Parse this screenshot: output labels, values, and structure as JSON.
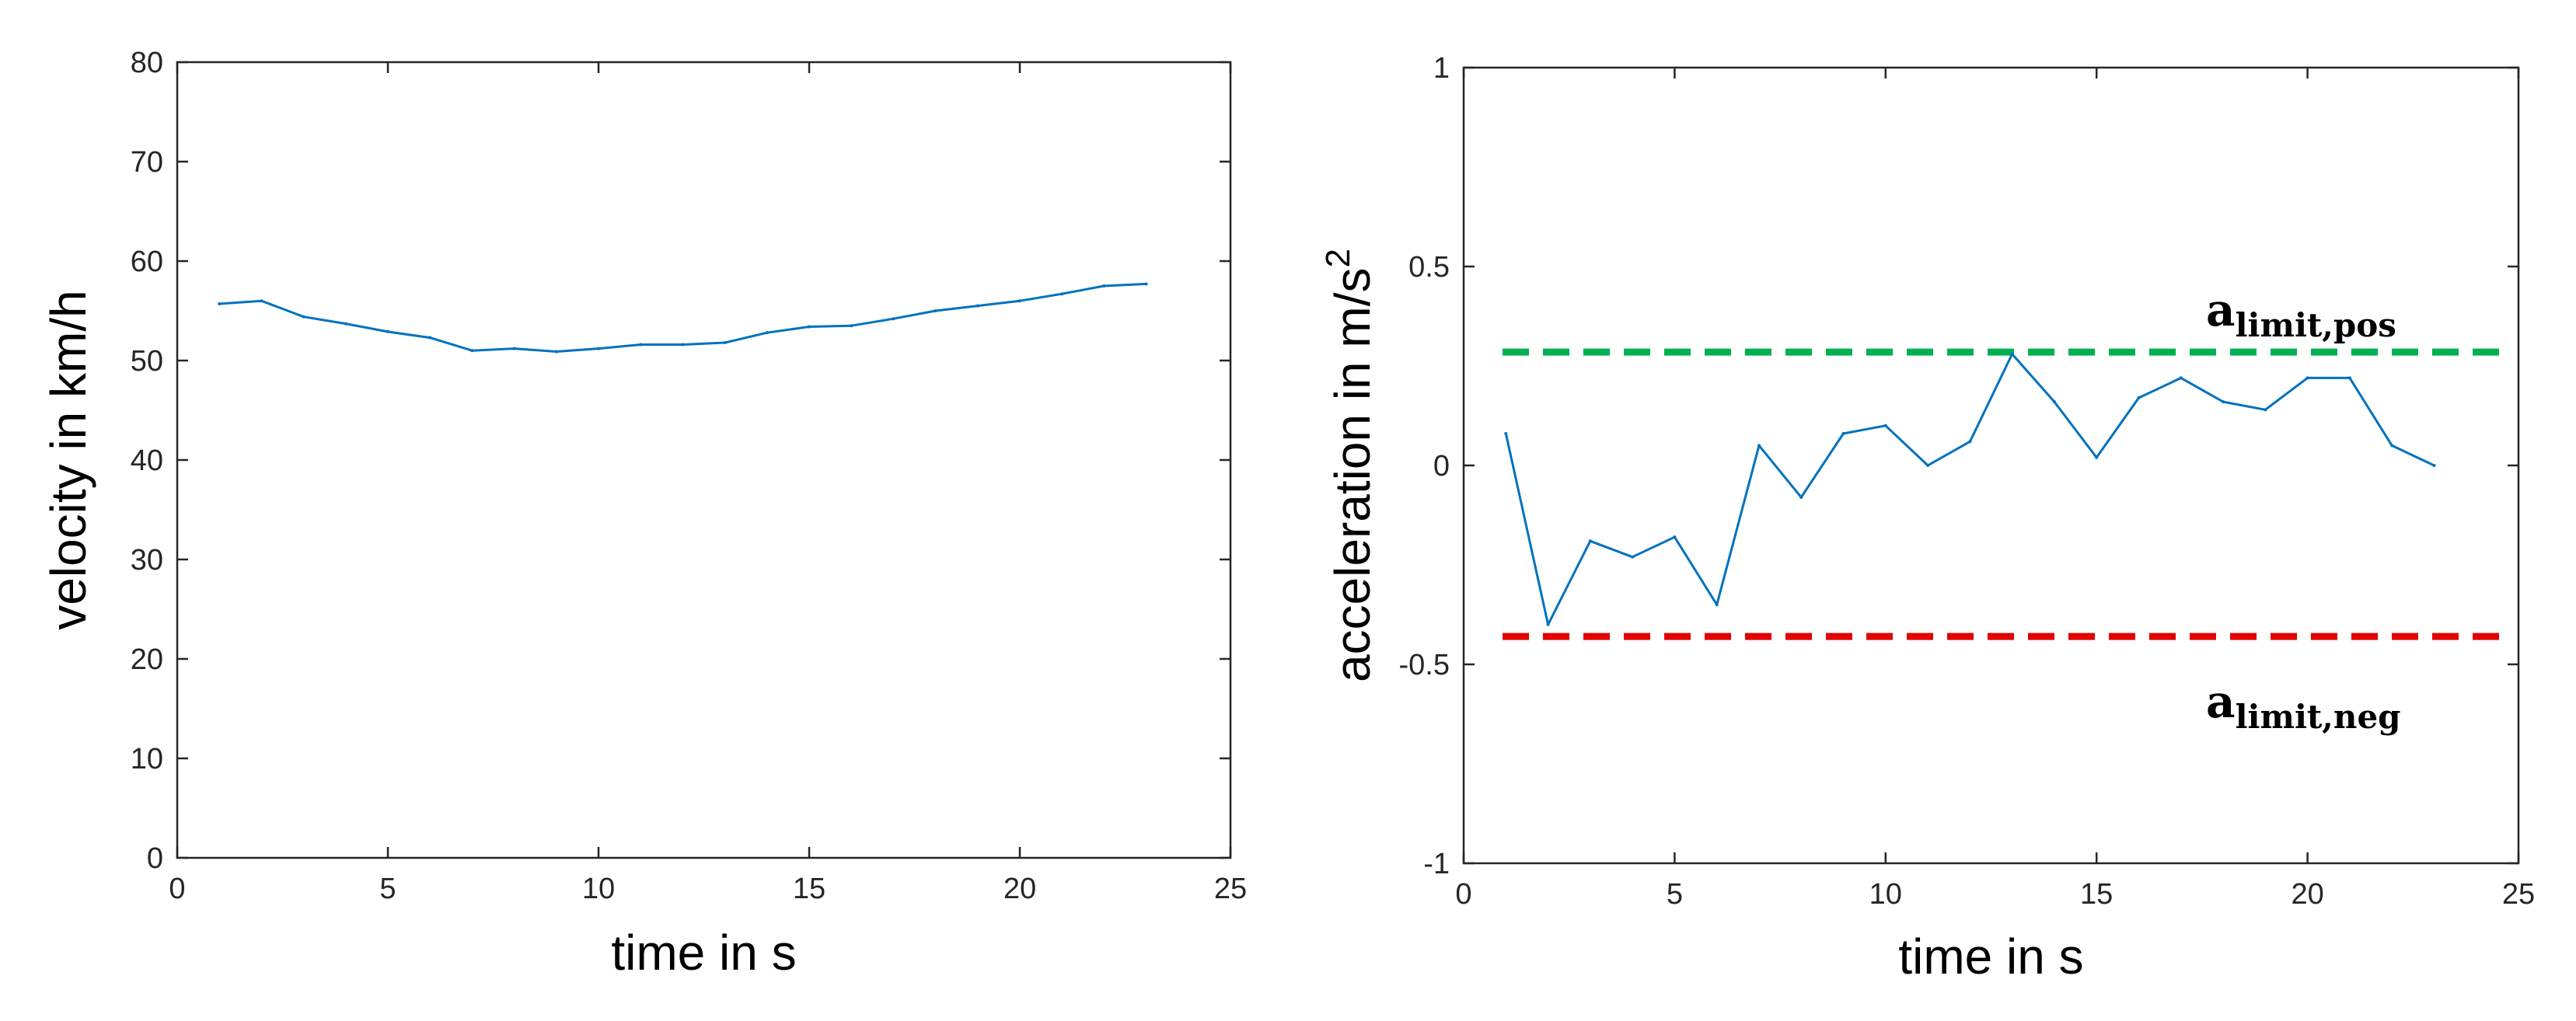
{
  "chart_data": [
    {
      "type": "line",
      "xlabel": "time in s",
      "ylabel": "velocity in km/h",
      "xlim": [
        0,
        25
      ],
      "ylim": [
        0,
        80
      ],
      "xticks": [
        "0",
        "5",
        "10",
        "15",
        "20",
        "25"
      ],
      "yticks": [
        "0",
        "10",
        "20",
        "30",
        "40",
        "50",
        "60",
        "70",
        "80"
      ],
      "grid": false,
      "series": [
        {
          "color": "#0072BD",
          "x": [
            1,
            2,
            3,
            4,
            5,
            6,
            7,
            8,
            9,
            10,
            11,
            12,
            13,
            14,
            15,
            16,
            17,
            18,
            19,
            20,
            21,
            22,
            23
          ],
          "y": [
            55.7,
            56.0,
            54.4,
            53.7,
            52.9,
            52.3,
            51.0,
            51.2,
            50.9,
            51.2,
            51.6,
            51.6,
            51.8,
            52.8,
            53.4,
            53.5,
            54.2,
            55.0,
            55.5,
            56.0,
            56.7,
            57.5,
            57.7
          ]
        }
      ]
    },
    {
      "type": "line",
      "xlabel": "time in s",
      "ylabel_main": "acceleration in m/s",
      "ylabel_sup": "2",
      "xlim": [
        0,
        25
      ],
      "ylim": [
        -1,
        1
      ],
      "xticks": [
        "0",
        "5",
        "10",
        "15",
        "20",
        "25"
      ],
      "yticks": [
        "-1",
        "-0.5",
        "0",
        "0.5",
        "1"
      ],
      "grid": false,
      "series": [
        {
          "color": "#0072BD",
          "x": [
            1,
            2,
            3,
            4,
            5,
            6,
            7,
            8,
            9,
            10,
            11,
            12,
            13,
            14,
            15,
            16,
            17,
            18,
            19,
            20,
            21,
            22,
            23
          ],
          "y": [
            0.08,
            -0.4,
            -0.19,
            -0.23,
            -0.18,
            -0.35,
            0.05,
            -0.08,
            0.08,
            0.1,
            0.0,
            0.06,
            0.28,
            0.16,
            0.02,
            0.17,
            0.22,
            0.16,
            0.14,
            0.22,
            0.22,
            0.05,
            0.0
          ]
        }
      ],
      "reference_lines": [
        {
          "label_main": "a",
          "label_sub": "limit,pos",
          "y": 0.285,
          "color": "#00B050",
          "style": "dashed"
        },
        {
          "label_main": "a",
          "label_sub": "limit,neg",
          "y": -0.43,
          "color": "#E00000",
          "style": "dashed"
        }
      ]
    }
  ]
}
